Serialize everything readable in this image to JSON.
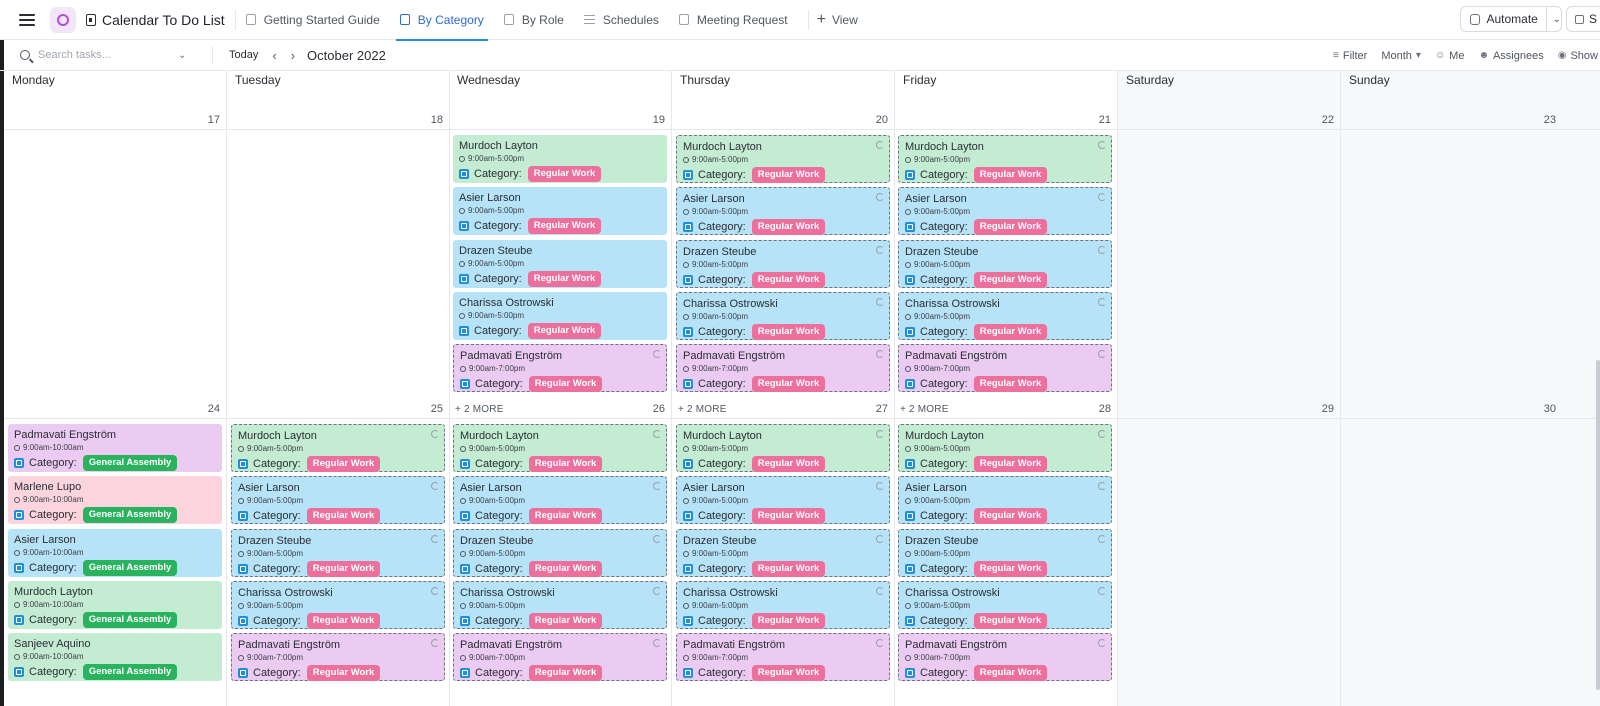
{
  "app": {
    "list_title": "Calendar To Do List",
    "colors": {
      "accent": "#2b8ad6",
      "regular_badge": "#ec6f9c",
      "general_badge": "#29b35f",
      "green": "#c4ecd3",
      "blue": "#b7e3f8",
      "purple": "#ebcbf2",
      "pink": "#fbd4de"
    }
  },
  "tabs": [
    {
      "label": "Getting Started Guide"
    },
    {
      "label": "By Category"
    },
    {
      "label": "By Role"
    },
    {
      "label": "Schedules"
    },
    {
      "label": "Meeting Request"
    }
  ],
  "view_button": "View",
  "automate": "Automate",
  "share": "S",
  "toolbar": {
    "search_placeholder": "Search tasks...",
    "today": "Today",
    "month": "October 2022",
    "filter": "Filter",
    "period": "Month",
    "me": "Me",
    "assignees": "Assignees",
    "show": "Show"
  },
  "days": [
    "Monday",
    "Tuesday",
    "Wednesday",
    "Thursday",
    "Friday",
    "Saturday",
    "Sunday"
  ],
  "weeks": [
    {
      "dates": [
        "17",
        "18",
        "19",
        "20",
        "21",
        "22",
        "23"
      ]
    },
    {
      "dates": [
        "24",
        "25",
        "26",
        "27",
        "28",
        "29",
        "30"
      ]
    }
  ],
  "more_label": "+ 2 MORE",
  "category_label": "Category:",
  "week1_tasks": [
    {
      "name": "Murdoch Layton",
      "time": "9:00am-5:00pm",
      "badge": "Regular Work",
      "color": "green"
    },
    {
      "name": "Asier Larson",
      "time": "9:00am-5:00pm",
      "badge": "Regular Work",
      "color": "blue"
    },
    {
      "name": "Drazen Steube",
      "time": "9:00am-5:00pm",
      "badge": "Regular Work",
      "color": "blue"
    },
    {
      "name": "Charissa Ostrowski",
      "time": "9:00am-5:00pm",
      "badge": "Regular Work",
      "color": "blue"
    },
    {
      "name": "Padmavati Engström",
      "time": "9:00am-7:00pm",
      "badge": "Regular Work",
      "color": "purple"
    }
  ],
  "week2_monday": [
    {
      "name": "Padmavati Engström",
      "time": "9:00am-10:00am",
      "badge": "General Assembly",
      "color": "purple"
    },
    {
      "name": "Marlene Lupo",
      "time": "9:00am-10:00am",
      "badge": "General Assembly",
      "color": "pink"
    },
    {
      "name": "Asier Larson",
      "time": "9:00am-10:00am",
      "badge": "General Assembly",
      "color": "blue"
    },
    {
      "name": "Murdoch Layton",
      "time": "9:00am-10:00am",
      "badge": "General Assembly",
      "color": "green"
    },
    {
      "name": "Sanjeev Aquino",
      "time": "9:00am-10:00am",
      "badge": "General Assembly",
      "color": "green"
    }
  ],
  "week2_tasks": [
    {
      "name": "Murdoch Layton",
      "time": "9:00am-5:00pm",
      "badge": "Regular Work",
      "color": "green"
    },
    {
      "name": "Asier Larson",
      "time": "9:00am-5:00pm",
      "badge": "Regular Work",
      "color": "blue"
    },
    {
      "name": "Drazen Steube",
      "time": "9:00am-5:00pm",
      "badge": "Regular Work",
      "color": "blue"
    },
    {
      "name": "Charissa Ostrowski",
      "time": "9:00am-5:00pm",
      "badge": "Regular Work",
      "color": "blue"
    },
    {
      "name": "Padmavati Engström",
      "time": "9:00am-7:00pm",
      "badge": "Regular Work",
      "color": "purple"
    }
  ]
}
